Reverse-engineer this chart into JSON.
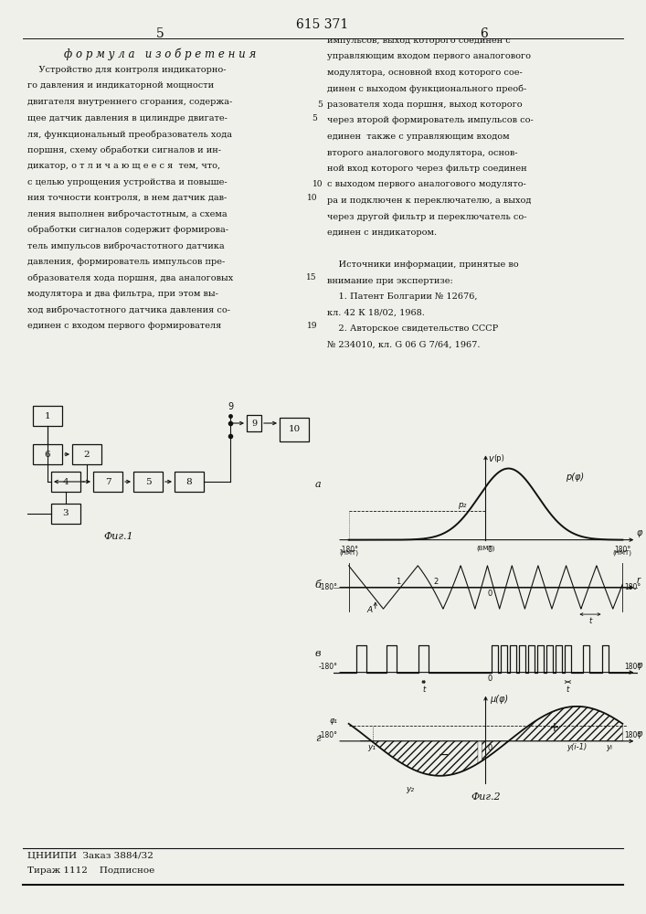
{
  "page_number_left": "5",
  "page_number_right": "6",
  "patent_number": "615 371",
  "section_title": "ф о р м у л а   и з о б р е т е н и я",
  "left_text": [
    "    Устройство для контроля индикаторно-",
    "го давления и индикаторной мощности",
    "двигателя внутреннего сгорания, содержа-",
    "щее датчик давления в цилиндре двигате-",
    "ля, функциональный преобразователь хода",
    "поршня, схему обработки сигналов и ин-",
    "дикатор, о т л и ч а ю щ е е с я  тем, что,",
    "с целью упрощения устройства и повыше-",
    "ния точности контроля, в нем датчик дав-",
    "ления выполнен виброчастотным, а схема",
    "обработки сигналов содержит формирова-",
    "тель импульсов виброчастотного датчика",
    "давления, формирователь импульсов пре-",
    "образователя хода поршня, два аналоговых",
    "модулятора и два фильтра, при этом вы-",
    "ход виброчастотного датчика давления со-",
    "единен с входом первого формирователя"
  ],
  "right_text": [
    "импульсов, выход которого соединен с",
    "управляющим входом первого аналогового",
    "модулятора, основной вход которого сое-",
    "динен с выходом функционального преоб-",
    "разователя хода поршня, выход которого",
    "через второй формирователь импульсов со-",
    "единен  также с управляющим входом",
    "второго аналогового модулятора, основ-",
    "ной вход которого через фильтр соединен",
    "с выходом первого аналогового модулято-",
    "ра и подключен к переключателю, а выход",
    "через другой фильтр и переключатель со-",
    "единен с индикатором.",
    "",
    "    Источники информации, принятые во",
    "внимание при экспертизе:",
    "    1. Патент Болгарии № 12676,",
    "кл. 42 К 18/02, 1968.",
    "    2. Авторское свидетельство СССР",
    "№ 234010, кл. G 06 G 7/64, 1967."
  ],
  "fig1_label": "Фиг.1",
  "fig2_label": "Фиг.2",
  "footer_left": "ЦНИИПИ  Заказ 3884/32",
  "footer_right": "Тираж 1112    Подписное",
  "bg_color": "#f0f0eb",
  "text_color": "#111111"
}
